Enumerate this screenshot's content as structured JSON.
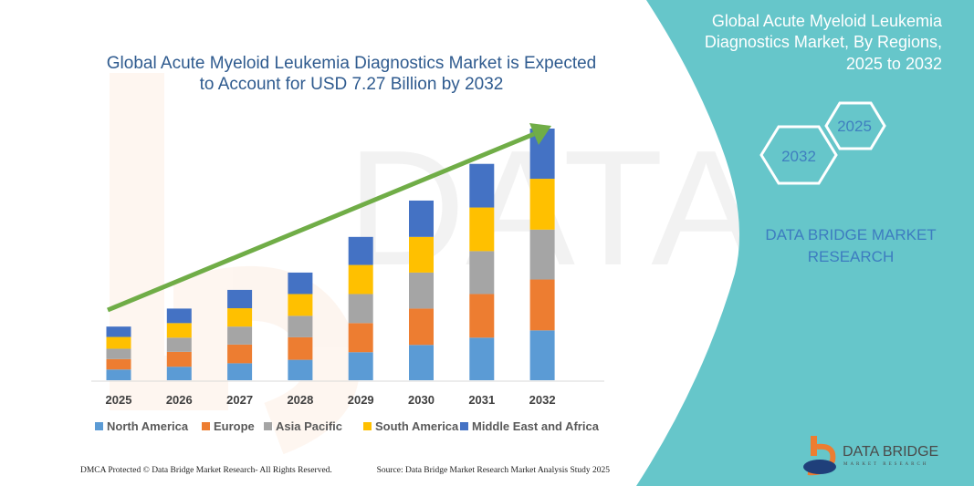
{
  "header": {
    "title_line1": "Global Acute Myeloid Leukemia Diagnostics Market is Expected",
    "title_line2": "to Account for USD 7.27 Billion by 2032"
  },
  "side_panel": {
    "title_line1": "Global Acute Myeloid Leukemia",
    "title_line2": "Diagnostics Market, By Regions,",
    "title_line3": "2025 to 2032",
    "hex_start": "2025",
    "hex_end": "2032",
    "brand_line1": "DATA BRIDGE MARKET",
    "brand_line2": "RESEARCH",
    "logo_text": "DATA BRIDGE",
    "logo_sub": "MARKET RESEARCH",
    "color": "#66c6ca"
  },
  "footer": {
    "left": "DMCA Protected © Data Bridge Market Research-  All Rights Reserved.",
    "right": "Source: Data Bridge Market Research  Market Analysis Study 2025"
  },
  "chart_data": {
    "type": "bar",
    "stacked": true,
    "title": "Global Acute Myeloid Leukemia Diagnostics Market is Expected to Account for USD 7.27 Billion by 2032",
    "xlabel": "",
    "ylabel": "",
    "unit": "USD Billion (estimated from bar heights)",
    "grid": false,
    "legend_position": "bottom",
    "trend_arrow_color": "#70ad47",
    "categories": [
      "2025",
      "2026",
      "2027",
      "2028",
      "2029",
      "2030",
      "2031",
      "2032"
    ],
    "ylim": [
      0,
      7.27
    ],
    "series": [
      {
        "name": "North America",
        "color": "#5b9bd5",
        "values": [
          0.31,
          0.39,
          0.49,
          0.59,
          0.81,
          1.02,
          1.23,
          1.44
        ]
      },
      {
        "name": "Europe",
        "color": "#ed7d31",
        "values": [
          0.3,
          0.43,
          0.54,
          0.65,
          0.84,
          1.05,
          1.26,
          1.47
        ]
      },
      {
        "name": "Asia Pacific",
        "color": "#a5a5a5",
        "values": [
          0.3,
          0.41,
          0.52,
          0.62,
          0.84,
          1.04,
          1.24,
          1.44
        ]
      },
      {
        "name": "South America",
        "color": "#ffc000",
        "values": [
          0.34,
          0.42,
          0.53,
          0.63,
          0.84,
          1.03,
          1.26,
          1.47
        ]
      },
      {
        "name": "Middle East and Africa",
        "color": "#4472c4",
        "values": [
          0.3,
          0.42,
          0.53,
          0.62,
          0.81,
          1.05,
          1.26,
          1.45
        ]
      }
    ]
  }
}
